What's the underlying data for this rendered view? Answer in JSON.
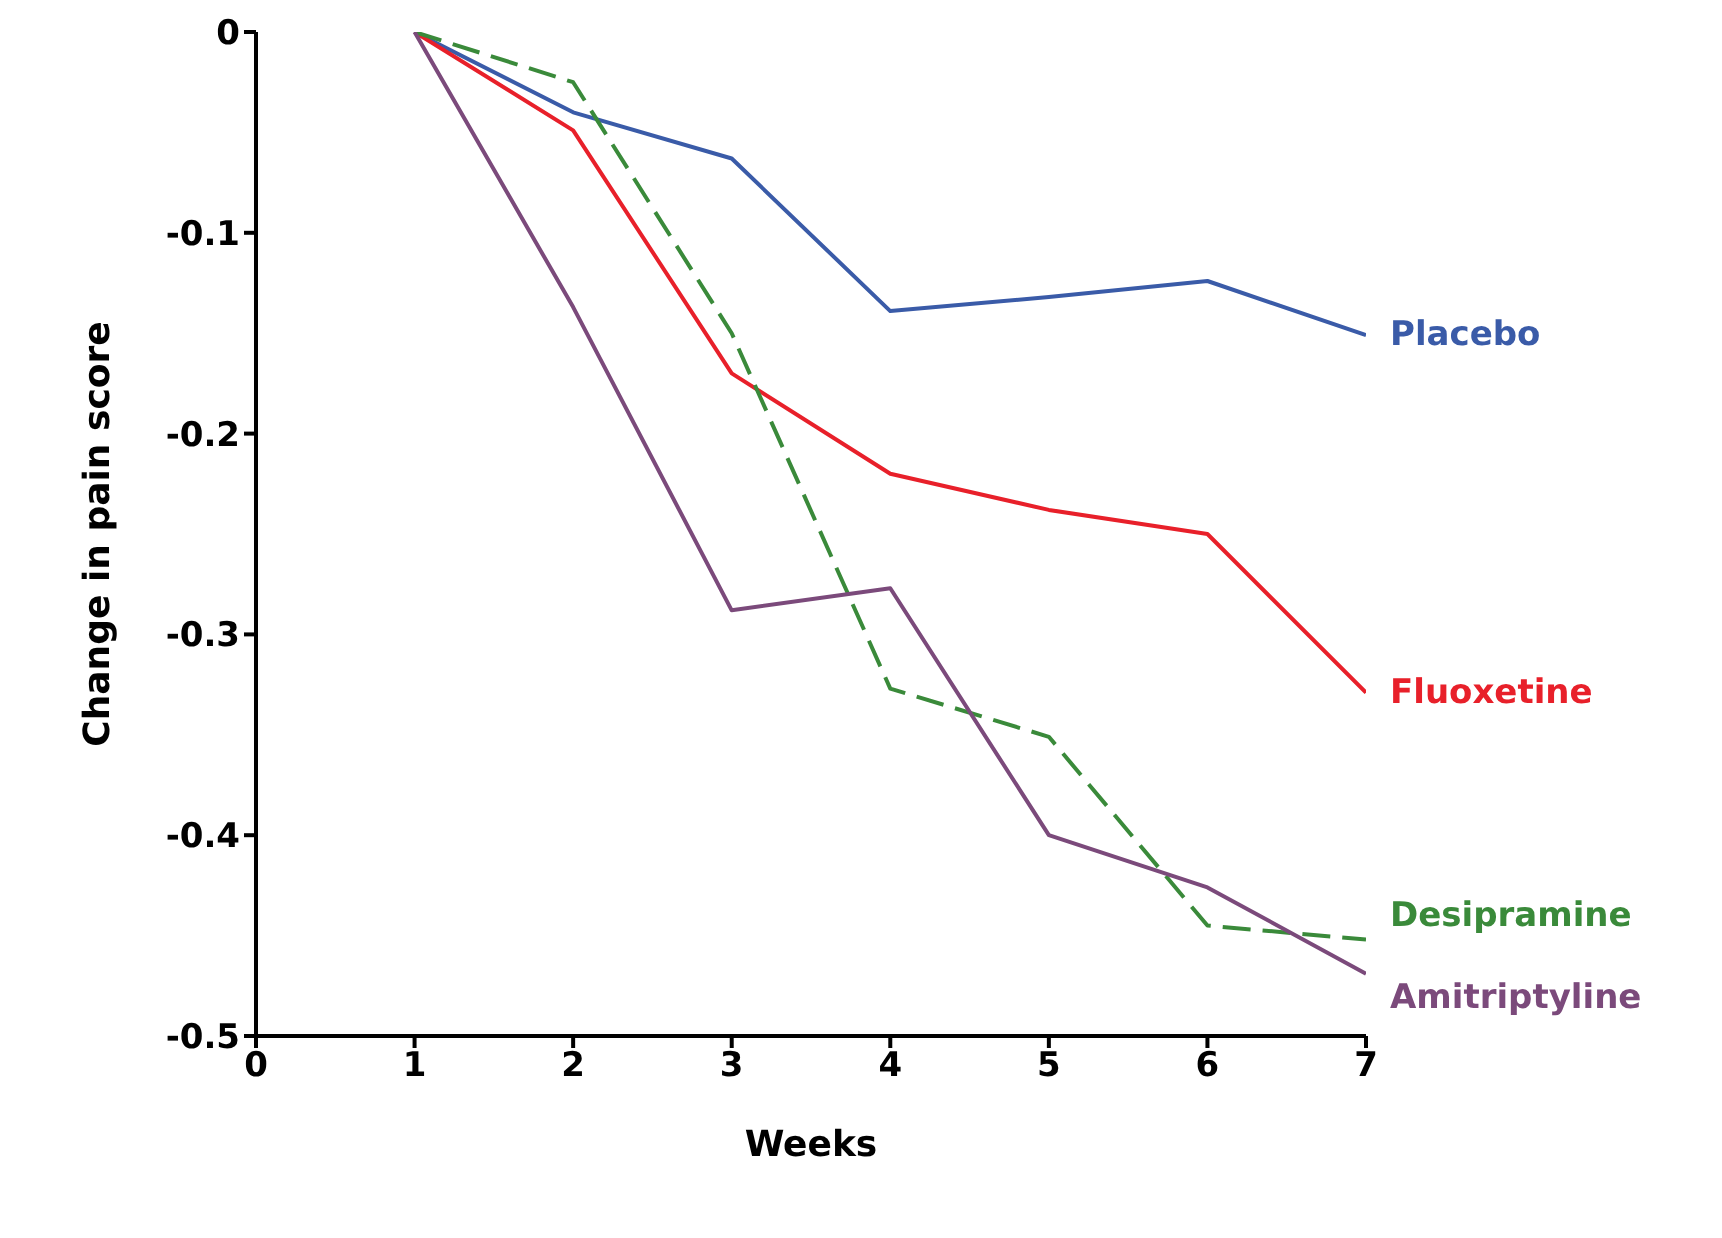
{
  "chart_data": {
    "type": "line",
    "xlabel": "Weeks",
    "ylabel": "Change in pain score",
    "x": [
      1,
      2,
      3,
      4,
      5,
      6,
      7
    ],
    "series": [
      {
        "name": "Placebo",
        "color": "#3a5ba8",
        "values": [
          0,
          -0.04,
          -0.063,
          -0.139,
          -0.132,
          -0.124,
          -0.151
        ]
      },
      {
        "name": "Fluoxetine",
        "color": "#e8202a",
        "values": [
          0,
          -0.049,
          -0.17,
          -0.22,
          -0.238,
          -0.25,
          -0.329
        ]
      },
      {
        "name": "Desipramine",
        "color": "#3a8a3a",
        "line_style": "dashed",
        "values": [
          0,
          -0.025,
          -0.15,
          -0.327,
          -0.351,
          -0.445,
          -0.452
        ]
      },
      {
        "name": "Amitriptyline",
        "color": "#7b4a7b",
        "values": [
          0,
          -0.137,
          -0.288,
          -0.277,
          -0.4,
          -0.426,
          -0.469
        ]
      }
    ],
    "xlim": [
      0,
      7
    ],
    "xticks": [
      0,
      1,
      2,
      3,
      4,
      5,
      6,
      7
    ],
    "ylim": [
      -0.5,
      0
    ],
    "yticks": [
      -0.5,
      -0.4,
      -0.3,
      -0.2,
      -0.1,
      0
    ],
    "grid": false
  }
}
